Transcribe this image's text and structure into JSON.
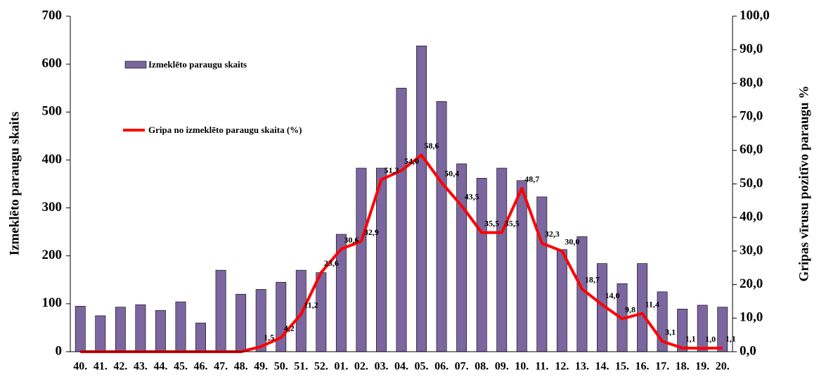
{
  "chart_data": {
    "type": "bar-line",
    "categories": [
      "40.",
      "41.",
      "42.",
      "43.",
      "44.",
      "45.",
      "46.",
      "47.",
      "48.",
      "49.",
      "50.",
      "51.",
      "52.",
      "01.",
      "02.",
      "03.",
      "04.",
      "05.",
      "06.",
      "07.",
      "08.",
      "09.",
      "10.",
      "11.",
      "12.",
      "13.",
      "14.",
      "15.",
      "16.",
      "17.",
      "18.",
      "19.",
      "20."
    ],
    "y_label": "Izmeklēto paraugu skaits",
    "y2_label": "Gripas vīrusu pozitīvo paraugu %",
    "ylim": [
      0,
      700
    ],
    "yticks": [
      0,
      100,
      200,
      300,
      400,
      500,
      600,
      700
    ],
    "y2lim": [
      0,
      100
    ],
    "y2ticks": [
      {
        "value": 0,
        "label": "0,0"
      },
      {
        "value": 10,
        "label": "10,0"
      },
      {
        "value": 20,
        "label": "20,0"
      },
      {
        "value": 30,
        "label": "30,0"
      },
      {
        "value": 40,
        "label": "40,0"
      },
      {
        "value": 50,
        "label": "50,0"
      },
      {
        "value": 60,
        "label": "60,0"
      },
      {
        "value": 70,
        "label": "70,0"
      },
      {
        "value": 80,
        "label": "80,0"
      },
      {
        "value": 90,
        "label": "90,0"
      },
      {
        "value": 100,
        "label": "100,0"
      }
    ],
    "series": [
      {
        "name": "Izmeklēto  paraugu skaits",
        "type": "bar",
        "color": "#7b66a0",
        "values": [
          95,
          75,
          93,
          98,
          86,
          104,
          60,
          170,
          120,
          130,
          145,
          170,
          165,
          245,
          383,
          383,
          550,
          638,
          522,
          392,
          362,
          383,
          357,
          323,
          213,
          240,
          184,
          142,
          184,
          125,
          89,
          97,
          93
        ]
      },
      {
        "name": "Gripa no izmeklēto  paraugu skaita (%)",
        "type": "line",
        "axis": "y2",
        "color": "#ff0000",
        "values": [
          0,
          0,
          0,
          0,
          0,
          0,
          0,
          0,
          0,
          1.5,
          4.2,
          11.2,
          23.6,
          30.6,
          32.9,
          51.3,
          54.0,
          58.6,
          50.4,
          43.5,
          35.5,
          35.5,
          48.7,
          32.3,
          30.0,
          18.7,
          14.0,
          9.8,
          11.4,
          3.1,
          1.1,
          1.0,
          1.1
        ],
        "value_labels": [
          null,
          null,
          null,
          null,
          null,
          null,
          null,
          null,
          null,
          "1,5",
          "4,2",
          "11,2",
          "23,6",
          "30,6",
          "32,9",
          "51,3",
          "54,0",
          "58,6",
          "50,4",
          "43,5",
          "35,5",
          "35,5",
          "48,7",
          "32,3",
          "30,0",
          "18,7",
          "14,0",
          "9,8",
          "11,4",
          "3,1",
          "1,1",
          "1,0",
          "1,1"
        ]
      }
    ]
  }
}
